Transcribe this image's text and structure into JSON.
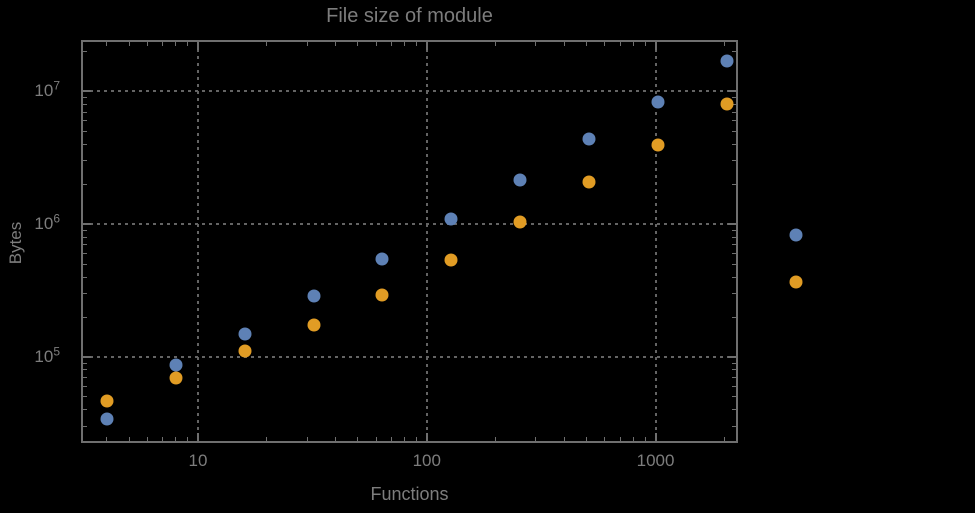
{
  "title": "File size of module",
  "colors": {
    "background": "#000000",
    "frame": "#6f6f6f",
    "grid": "#646464",
    "text": "#7d7d7d",
    "series_blue": "#5E81B5",
    "series_orange": "#E19C24"
  },
  "chart_data": {
    "type": "scatter",
    "title": "File size of module",
    "xlabel": "Functions",
    "ylabel": "Bytes",
    "x_scale": "log",
    "y_scale": "log",
    "x_range": [
      3.08,
      2293
    ],
    "y_range": [
      22500,
      24400000
    ],
    "grid": "dotted",
    "legend": "none",
    "x": [
      4,
      8,
      16,
      32,
      64,
      128,
      256,
      512,
      1024,
      2048,
      4096
    ],
    "series": [
      {
        "name": "series-1-blue",
        "color": "#5E81B5",
        "values": [
          34000,
          87000,
          150000,
          290000,
          550000,
          1100000,
          2150000,
          4400000,
          8300000,
          17000000,
          830000
        ]
      },
      {
        "name": "series-2-orange",
        "color": "#E19C24",
        "values": [
          47000,
          70000,
          110000,
          175000,
          293000,
          540000,
          1040000,
          2080000,
          3950000,
          8100000,
          370000
        ]
      }
    ],
    "x_major_ticks": [
      {
        "value": 10,
        "label": "10"
      },
      {
        "value": 100,
        "label": "100"
      },
      {
        "value": 1000,
        "label": "1000"
      }
    ],
    "y_major_ticks": [
      {
        "value": 100000,
        "base": "10",
        "exponent": "5"
      },
      {
        "value": 1000000,
        "base": "10",
        "exponent": "6"
      },
      {
        "value": 10000000,
        "base": "10",
        "exponent": "7"
      }
    ]
  }
}
